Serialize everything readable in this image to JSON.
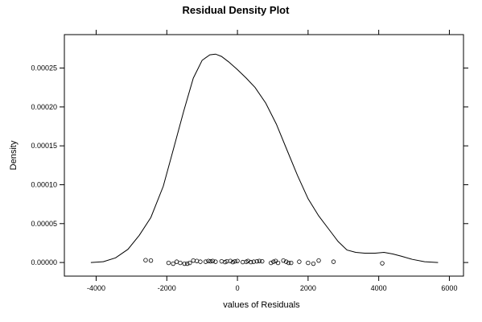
{
  "chart_data": {
    "type": "line",
    "title": "Residual Density Plot",
    "xlabel": "values of Residuals",
    "ylabel": "Density",
    "xlim": [
      -4900,
      6400
    ],
    "ylim": [
      -1.75e-05,
      0.000293
    ],
    "x_ticks": [
      -4000,
      -2000,
      0,
      2000,
      4000,
      6000
    ],
    "x_tick_labels": [
      "-4000",
      "-2000",
      "0",
      "2000",
      "4000",
      "6000"
    ],
    "y_ticks": [
      0,
      5e-05,
      0.0001,
      0.00015,
      0.0002,
      0.00025
    ],
    "y_tick_labels": [
      "0.00000",
      "0.00005",
      "0.00010",
      "0.00015",
      "0.00020",
      "0.00025"
    ],
    "grid": false,
    "legend": "none",
    "series": [
      {
        "type": "line",
        "x": [
          -4150,
          -3800,
          -3450,
          -3100,
          -2780,
          -2450,
          -2100,
          -1800,
          -1520,
          -1250,
          -1000,
          -780,
          -620,
          -450,
          -250,
          0,
          250,
          500,
          800,
          1100,
          1400,
          1700,
          2000,
          2300,
          2600,
          2850,
          3100,
          3350,
          3600,
          3900,
          4150,
          4400,
          4650,
          4950,
          5300,
          5680
        ],
        "y": [
          0.0,
          1e-06,
          6e-06,
          1.7e-05,
          3.5e-05,
          5.8e-05,
          9.8e-05,
          0.000148,
          0.000195,
          0.000237,
          0.00026,
          0.000267,
          0.000268,
          0.000265,
          0.000258,
          0.000248,
          0.000237,
          0.000225,
          0.000205,
          0.000178,
          0.000145,
          0.000112,
          8.2e-05,
          6e-05,
          4.2e-05,
          2.7e-05,
          1.6e-05,
          1.3e-05,
          1.2e-05,
          1.2e-05,
          1.3e-05,
          1.1e-05,
          8e-06,
          4e-06,
          1e-06,
          0.0
        ]
      },
      {
        "type": "scatter",
        "marker": "open-circle",
        "x": [
          -2600,
          -2450,
          -1950,
          -1820,
          -1720,
          -1620,
          -1500,
          -1420,
          -1350,
          -1250,
          -1150,
          -1050,
          -900,
          -820,
          -760,
          -700,
          -620,
          -450,
          -350,
          -300,
          -200,
          -130,
          -70,
          0,
          150,
          250,
          300,
          380,
          460,
          550,
          620,
          700,
          950,
          1020,
          1080,
          1150,
          1300,
          1380,
          1450,
          1520,
          1750,
          2000,
          2150,
          2300,
          2720,
          4100
        ],
        "y": [
          3e-06,
          2.5e-06,
          -5e-07,
          -1.5e-06,
          1e-06,
          -5e-07,
          -1.5e-06,
          -1.5e-06,
          -5e-07,
          2.5e-06,
          2e-06,
          1e-06,
          1e-06,
          2e-06,
          1.5e-06,
          2e-06,
          1e-06,
          1.5e-06,
          5e-07,
          1.5e-06,
          2e-06,
          5e-07,
          1.5e-06,
          2e-06,
          5e-07,
          1e-06,
          2e-06,
          5e-07,
          1e-06,
          1.5e-06,
          2e-06,
          1.5e-06,
          -5e-07,
          1e-06,
          2e-06,
          -5e-07,
          2.5e-06,
          1e-06,
          -5e-07,
          -5e-07,
          1e-06,
          -5e-07,
          -1.5e-06,
          2.5e-06,
          1e-06,
          -1e-06
        ]
      }
    ]
  }
}
